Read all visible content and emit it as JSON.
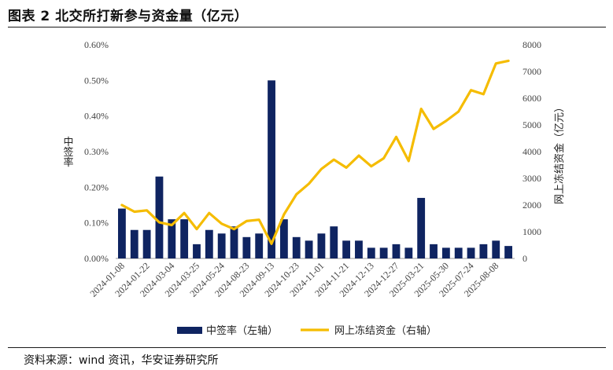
{
  "title": "图表 2 北交所打新参与资金量（亿元）",
  "source": "资料来源：wind 资讯，华安证券研究所",
  "chart_data": {
    "type": "bar",
    "y_left_label": "中签率",
    "y_right_label": "网上冻结资金（亿元）",
    "y_left_ticks": [
      "0.00%",
      "0.10%",
      "0.20%",
      "0.30%",
      "0.40%",
      "0.50%",
      "0.60%"
    ],
    "y_right_ticks": [
      "0",
      "1000",
      "2000",
      "3000",
      "4000",
      "5000",
      "6000",
      "7000",
      "8000"
    ],
    "ylim_left": [
      0,
      0.6
    ],
    "ylim_right": [
      0,
      8000
    ],
    "x_tick_labels": [
      "2024-01-08",
      "2024-01-22",
      "2024-03-04",
      "2024-03-25",
      "2024-05-24",
      "2024-08-23",
      "2024-09-13",
      "2024-10-23",
      "2024-11-01",
      "2024-11-21",
      "2024-12-13",
      "2024-12-27",
      "2025-03-21",
      "2025-05-30",
      "2025-07-24",
      "2025-08-08"
    ],
    "series": [
      {
        "name": "中签率（左轴）",
        "type": "bar",
        "axis": "left",
        "color": "#0f2461",
        "values": [
          0.14,
          0.08,
          0.08,
          0.23,
          0.11,
          0.11,
          0.04,
          0.08,
          0.07,
          0.09,
          0.06,
          0.07,
          0.5,
          0.11,
          0.06,
          0.05,
          0.07,
          0.09,
          0.05,
          0.05,
          0.03,
          0.03,
          0.04,
          0.03,
          0.17,
          0.04,
          0.03,
          0.03,
          0.03,
          0.04,
          0.05,
          0.035
        ]
      },
      {
        "name": "网上冻结资金（右轴）",
        "type": "line",
        "axis": "right",
        "color": "#f5bc00",
        "values": [
          2000,
          1750,
          1800,
          1350,
          1250,
          1700,
          1100,
          1700,
          1300,
          1100,
          1400,
          1450,
          550,
          1650,
          2400,
          2800,
          3350,
          3700,
          3400,
          3850,
          3450,
          3750,
          4550,
          3650,
          5600,
          4850,
          5150,
          5500,
          6300,
          6150,
          7300,
          7400
        ]
      }
    ],
    "legend_position": "bottom",
    "grid": false
  }
}
